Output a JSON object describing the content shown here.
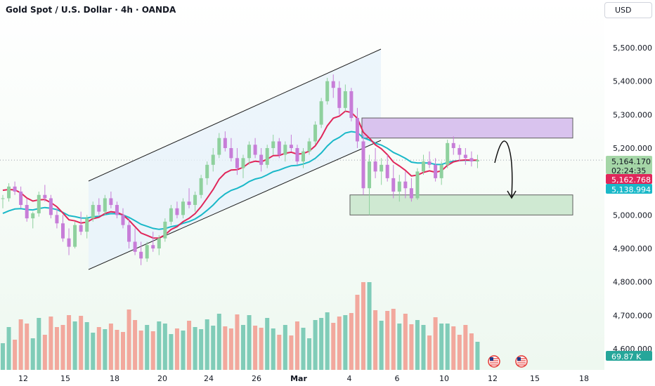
{
  "header": {
    "title": "Gold Spot / U.S. Dollar · 4h · OANDA",
    "currency": "USD"
  },
  "colors": {
    "up": "#8fd19e",
    "down": "#c77dd8",
    "ma_fast": "#e0265a",
    "ma_slow": "#1ab8c8",
    "channel_fill": "#e7f1fb",
    "resistance_zone": "#d9c3ee",
    "support_zone": "#cfe9d2",
    "volume_up": "#6cc4ae",
    "volume_down": "#f29a8e"
  },
  "price_tags": {
    "last": "5,164.170",
    "countdown": "02:24:35",
    "ma_fast": "5,162.768",
    "ma_slow": "5,138.994",
    "volume": "69.87 K"
  },
  "chart_data": {
    "type": "candlestick",
    "title": "Gold Spot / U.S. Dollar · 4h · OANDA",
    "y_ticks": [
      4600,
      4700,
      4800,
      4900,
      5000,
      5100,
      5200,
      5300,
      5400,
      5500
    ],
    "y_tick_labels": [
      "4,600.000",
      "4,700.000",
      "4,800.000",
      "4,900.000",
      "5,000.000",
      "5,100.000",
      "5,200.000",
      "5,300.000",
      "5,400.000",
      "5,500.000"
    ],
    "ylim": [
      4560,
      5580
    ],
    "x_tick_labels": [
      "12",
      "15",
      "18",
      "20",
      "24",
      "26",
      "Mar",
      "4",
      "6",
      "10",
      "12",
      "15",
      "18"
    ],
    "series": [
      {
        "name": "price",
        "ohlc": [
          [
            5048,
            5060,
            5020,
            5050
          ],
          [
            5050,
            5095,
            5040,
            5085
          ],
          [
            5085,
            5100,
            5060,
            5070
          ],
          [
            5070,
            5085,
            5020,
            5030
          ],
          [
            5030,
            5050,
            4980,
            4990
          ],
          [
            4990,
            5010,
            4960,
            5005
          ],
          [
            5005,
            5070,
            4995,
            5060
          ],
          [
            5060,
            5090,
            5040,
            5050
          ],
          [
            5050,
            5060,
            4990,
            5000
          ],
          [
            5000,
            5020,
            4960,
            4975
          ],
          [
            4975,
            5000,
            4920,
            4930
          ],
          [
            4930,
            4960,
            4880,
            4905
          ],
          [
            4905,
            4980,
            4900,
            4970
          ],
          [
            4970,
            5010,
            4940,
            4950
          ],
          [
            4950,
            5000,
            4930,
            4990
          ],
          [
            4990,
            5040,
            4980,
            5030
          ],
          [
            5030,
            5050,
            5000,
            5010
          ],
          [
            5010,
            5060,
            5000,
            5050
          ],
          [
            5050,
            5070,
            5020,
            5030
          ],
          [
            5030,
            5040,
            4990,
            5000
          ],
          [
            5000,
            5020,
            4960,
            4970
          ],
          [
            4970,
            4990,
            4900,
            4920
          ],
          [
            4920,
            4960,
            4880,
            4890
          ],
          [
            4890,
            4920,
            4850,
            4870
          ],
          [
            4870,
            4920,
            4860,
            4910
          ],
          [
            4910,
            4950,
            4890,
            4900
          ],
          [
            4900,
            4940,
            4880,
            4930
          ],
          [
            4930,
            4990,
            4920,
            4980
          ],
          [
            4980,
            5030,
            4970,
            5020
          ],
          [
            5020,
            5040,
            4990,
            5000
          ],
          [
            5000,
            5050,
            4990,
            5040
          ],
          [
            5040,
            5080,
            5020,
            5030
          ],
          [
            5030,
            5070,
            5010,
            5060
          ],
          [
            5060,
            5120,
            5050,
            5110
          ],
          [
            5110,
            5160,
            5090,
            5150
          ],
          [
            5150,
            5200,
            5130,
            5180
          ],
          [
            5180,
            5245,
            5170,
            5230
          ],
          [
            5230,
            5250,
            5190,
            5200
          ],
          [
            5200,
            5230,
            5160,
            5170
          ],
          [
            5170,
            5200,
            5120,
            5140
          ],
          [
            5140,
            5180,
            5110,
            5170
          ],
          [
            5170,
            5220,
            5150,
            5210
          ],
          [
            5210,
            5230,
            5170,
            5180
          ],
          [
            5180,
            5200,
            5130,
            5150
          ],
          [
            5150,
            5210,
            5140,
            5200
          ],
          [
            5200,
            5240,
            5180,
            5220
          ],
          [
            5220,
            5230,
            5170,
            5180
          ],
          [
            5180,
            5220,
            5160,
            5210
          ],
          [
            5210,
            5240,
            5190,
            5200
          ],
          [
            5200,
            5210,
            5150,
            5160
          ],
          [
            5160,
            5200,
            5140,
            5190
          ],
          [
            5190,
            5230,
            5180,
            5220
          ],
          [
            5220,
            5280,
            5210,
            5270
          ],
          [
            5270,
            5350,
            5260,
            5340
          ],
          [
            5340,
            5410,
            5330,
            5400
          ],
          [
            5400,
            5420,
            5350,
            5380
          ],
          [
            5380,
            5400,
            5300,
            5320
          ],
          [
            5320,
            5390,
            5310,
            5370
          ],
          [
            5370,
            5380,
            5280,
            5290
          ],
          [
            5290,
            5320,
            5200,
            5220
          ],
          [
            5220,
            5240,
            5060,
            5080
          ],
          [
            5080,
            5180,
            5000,
            5160
          ],
          [
            5160,
            5200,
            5110,
            5130
          ],
          [
            5130,
            5170,
            5090,
            5150
          ],
          [
            5150,
            5180,
            5100,
            5110
          ],
          [
            5110,
            5150,
            5050,
            5070
          ],
          [
            5070,
            5120,
            5040,
            5100
          ],
          [
            5100,
            5130,
            5050,
            5080
          ],
          [
            5080,
            5110,
            5040,
            5050
          ],
          [
            5050,
            5140,
            5045,
            5130
          ],
          [
            5130,
            5180,
            5120,
            5160
          ],
          [
            5160,
            5190,
            5140,
            5150
          ],
          [
            5150,
            5170,
            5100,
            5110
          ],
          [
            5110,
            5160,
            5090,
            5150
          ],
          [
            5150,
            5225,
            5140,
            5215
          ],
          [
            5215,
            5235,
            5180,
            5200
          ],
          [
            5200,
            5210,
            5160,
            5180
          ],
          [
            5180,
            5200,
            5150,
            5170
          ],
          [
            5170,
            5190,
            5145,
            5160
          ],
          [
            5160,
            5180,
            5140,
            5164.17
          ]
        ]
      },
      {
        "name": "MA (fast)",
        "last": 5162.768
      },
      {
        "name": "MA (slow)",
        "last": 5138.994
      }
    ],
    "volume_last": "69.87 K",
    "zones": [
      {
        "type": "resistance",
        "low": 5230,
        "high": 5290
      },
      {
        "type": "support",
        "low": 5000,
        "high": 5060
      }
    ],
    "grid": false
  }
}
